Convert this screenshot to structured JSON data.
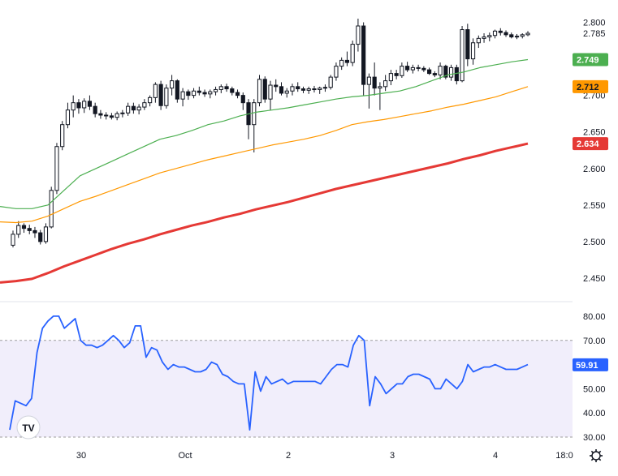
{
  "chart_data": [
    {
      "type": "candlestick",
      "ylim": [
        2.42,
        2.815
      ],
      "y_ticks": [
        "2.800",
        "2.785",
        "2.700",
        "2.650",
        "2.600",
        "2.550",
        "2.500",
        "2.450"
      ],
      "x_ticks": [
        "30",
        "Oct",
        "2",
        "3",
        "4",
        "18:0"
      ],
      "grid": false,
      "colors": {
        "up": "#131722",
        "down": "#131722",
        "ma_fast": "#4caf50",
        "ma_mid": "#ff9800",
        "ma_slow": "#e53935"
      },
      "candles": [
        [
          2.495,
          2.515,
          2.492,
          2.51
        ],
        [
          2.51,
          2.528,
          2.505,
          2.522
        ],
        [
          2.522,
          2.525,
          2.512,
          2.518
        ],
        [
          2.518,
          2.523,
          2.51,
          2.515
        ],
        [
          2.515,
          2.52,
          2.505,
          2.512
        ],
        [
          2.512,
          2.516,
          2.496,
          2.5
        ],
        [
          2.5,
          2.525,
          2.497,
          2.52
        ],
        [
          2.52,
          2.575,
          2.518,
          2.57
        ],
        [
          2.57,
          2.635,
          2.565,
          2.63
        ],
        [
          2.63,
          2.665,
          2.625,
          2.66
        ],
        [
          2.66,
          2.69,
          2.655,
          2.68
        ],
        [
          2.68,
          2.7,
          2.67,
          2.69
        ],
        [
          2.69,
          2.695,
          2.675,
          2.683
        ],
        [
          2.683,
          2.696,
          2.676,
          2.692
        ],
        [
          2.692,
          2.7,
          2.68,
          2.685
        ],
        [
          2.685,
          2.69,
          2.67,
          2.675
        ],
        [
          2.675,
          2.68,
          2.668,
          2.673
        ],
        [
          2.673,
          2.677,
          2.667,
          2.672
        ],
        [
          2.672,
          2.676,
          2.667,
          2.67
        ],
        [
          2.67,
          2.678,
          2.666,
          2.675
        ],
        [
          2.675,
          2.68,
          2.67,
          2.676
        ],
        [
          2.676,
          2.69,
          2.672,
          2.685
        ],
        [
          2.685,
          2.69,
          2.675,
          2.68
        ],
        [
          2.68,
          2.688,
          2.674,
          2.684
        ],
        [
          2.684,
          2.695,
          2.68,
          2.69
        ],
        [
          2.69,
          2.7,
          2.685,
          2.697
        ],
        [
          2.697,
          2.718,
          2.69,
          2.715
        ],
        [
          2.715,
          2.72,
          2.68,
          2.686
        ],
        [
          2.686,
          2.715,
          2.682,
          2.71
        ],
        [
          2.71,
          2.728,
          2.7,
          2.72
        ],
        [
          2.72,
          2.722,
          2.69,
          2.695
        ],
        [
          2.695,
          2.71,
          2.685,
          2.705
        ],
        [
          2.705,
          2.708,
          2.694,
          2.7
        ],
        [
          2.7,
          2.71,
          2.696,
          2.706
        ],
        [
          2.706,
          2.712,
          2.7,
          2.704
        ],
        [
          2.704,
          2.708,
          2.698,
          2.702
        ],
        [
          2.702,
          2.708,
          2.696,
          2.705
        ],
        [
          2.705,
          2.712,
          2.7,
          2.708
        ],
        [
          2.708,
          2.715,
          2.703,
          2.712
        ],
        [
          2.712,
          2.716,
          2.705,
          2.709
        ],
        [
          2.709,
          2.712,
          2.7,
          2.704
        ],
        [
          2.704,
          2.708,
          2.696,
          2.7
        ],
        [
          2.7,
          2.704,
          2.68,
          2.69
        ],
        [
          2.69,
          2.695,
          2.64,
          2.66
        ],
        [
          2.66,
          2.695,
          2.622,
          2.69
        ],
        [
          2.69,
          2.728,
          2.685,
          2.722
        ],
        [
          2.722,
          2.726,
          2.69,
          2.695
        ],
        [
          2.695,
          2.72,
          2.68,
          2.714
        ],
        [
          2.714,
          2.722,
          2.705,
          2.712
        ],
        [
          2.712,
          2.718,
          2.7,
          2.703
        ],
        [
          2.703,
          2.71,
          2.697,
          2.706
        ],
        [
          2.706,
          2.716,
          2.7,
          2.712
        ],
        [
          2.712,
          2.718,
          2.705,
          2.709
        ],
        [
          2.709,
          2.712,
          2.703,
          2.707
        ],
        [
          2.707,
          2.712,
          2.702,
          2.709
        ],
        [
          2.709,
          2.713,
          2.704,
          2.708
        ],
        [
          2.708,
          2.712,
          2.702,
          2.71
        ],
        [
          2.71,
          2.715,
          2.705,
          2.711
        ],
        [
          2.711,
          2.728,
          2.708,
          2.725
        ],
        [
          2.725,
          2.745,
          2.72,
          2.74
        ],
        [
          2.74,
          2.752,
          2.735,
          2.748
        ],
        [
          2.748,
          2.76,
          2.74,
          2.745
        ],
        [
          2.745,
          2.775,
          2.74,
          2.77
        ],
        [
          2.77,
          2.805,
          2.76,
          2.795
        ],
        [
          2.795,
          2.8,
          2.7,
          2.715
        ],
        [
          2.715,
          2.73,
          2.682,
          2.725
        ],
        [
          2.725,
          2.745,
          2.7,
          2.71
        ],
        [
          2.71,
          2.718,
          2.68,
          2.712
        ],
        [
          2.712,
          2.728,
          2.706,
          2.72
        ],
        [
          2.72,
          2.735,
          2.714,
          2.73
        ],
        [
          2.73,
          2.735,
          2.722,
          2.727
        ],
        [
          2.727,
          2.745,
          2.724,
          2.74
        ],
        [
          2.74,
          2.746,
          2.732,
          2.735
        ],
        [
          2.735,
          2.742,
          2.73,
          2.738
        ],
        [
          2.738,
          2.742,
          2.733,
          2.737
        ],
        [
          2.737,
          2.74,
          2.732,
          2.735
        ],
        [
          2.735,
          2.738,
          2.728,
          2.73
        ],
        [
          2.73,
          2.733,
          2.725,
          2.728
        ],
        [
          2.728,
          2.745,
          2.722,
          2.74
        ],
        [
          2.74,
          2.742,
          2.722,
          2.725
        ],
        [
          2.725,
          2.742,
          2.72,
          2.738
        ],
        [
          2.738,
          2.742,
          2.715,
          2.72
        ],
        [
          2.72,
          2.795,
          2.718,
          2.79
        ],
        [
          2.79,
          2.798,
          2.74,
          2.75
        ],
        [
          2.75,
          2.778,
          2.742,
          2.772
        ],
        [
          2.772,
          2.782,
          2.765,
          2.778
        ],
        [
          2.778,
          2.785,
          2.772,
          2.78
        ],
        [
          2.78,
          2.786,
          2.774,
          2.782
        ],
        [
          2.782,
          2.79,
          2.778,
          2.788
        ],
        [
          2.788,
          2.792,
          2.782,
          2.786
        ],
        [
          2.786,
          2.789,
          2.78,
          2.783
        ],
        [
          2.783,
          2.786,
          2.778,
          2.78
        ],
        [
          2.78,
          2.784,
          2.777,
          2.781
        ],
        [
          2.781,
          2.785,
          2.778,
          2.783
        ],
        [
          2.783,
          2.788,
          2.781,
          2.785
        ]
      ],
      "moving_averages": [
        {
          "name": "",
          "color": "#4caf50",
          "last": "2.749",
          "values": [
            2.548,
            2.545,
            2.545,
            2.55,
            2.57,
            2.59,
            2.6,
            2.61,
            2.62,
            2.63,
            2.64,
            2.645,
            2.652,
            2.66,
            2.665,
            2.672,
            2.677,
            2.68,
            2.683,
            2.687,
            2.691,
            2.695,
            2.698,
            2.7,
            2.703,
            2.706,
            2.712,
            2.72,
            2.728,
            2.732,
            2.738,
            2.742,
            2.746,
            2.749
          ]
        },
        {
          "name": "",
          "color": "#ff9800",
          "last": "2.712",
          "values": [
            2.527,
            2.526,
            2.528,
            2.535,
            2.545,
            2.555,
            2.562,
            2.57,
            2.578,
            2.586,
            2.594,
            2.6,
            2.606,
            2.612,
            2.617,
            2.622,
            2.627,
            2.632,
            2.636,
            2.64,
            2.645,
            2.652,
            2.66,
            2.664,
            2.667,
            2.671,
            2.675,
            2.679,
            2.684,
            2.688,
            2.693,
            2.698,
            2.705,
            2.712
          ]
        },
        {
          "name": "",
          "color": "#e53935",
          "last": "2.634",
          "values": [
            2.444,
            2.446,
            2.449,
            2.457,
            2.466,
            2.474,
            2.482,
            2.49,
            2.497,
            2.503,
            2.51,
            2.516,
            2.522,
            2.527,
            2.533,
            2.538,
            2.544,
            2.549,
            2.554,
            2.56,
            2.566,
            2.572,
            2.577,
            2.582,
            2.587,
            2.592,
            2.597,
            2.602,
            2.607,
            2.613,
            2.618,
            2.624,
            2.629,
            2.634
          ]
        }
      ]
    },
    {
      "type": "line",
      "ylim": [
        28,
        84
      ],
      "y_ticks": [
        "80.00",
        "70.00",
        "50.00",
        "40.00",
        "30.00"
      ],
      "band": [
        30,
        70
      ],
      "last": "59.91",
      "color": "#2962ff",
      "values": [
        33,
        45,
        44,
        43,
        46,
        65,
        75,
        78,
        80,
        80,
        75,
        77,
        79,
        70,
        68,
        68,
        67,
        68,
        70,
        72,
        70,
        67,
        69,
        76,
        76,
        63,
        67,
        66,
        61,
        58,
        60,
        59,
        59,
        58,
        57,
        57,
        58,
        61,
        60,
        56,
        55,
        53,
        52,
        52,
        33,
        57,
        49,
        55,
        52,
        53,
        54,
        52,
        53,
        53,
        53,
        53,
        53,
        52,
        55,
        58,
        60,
        60,
        59,
        68,
        72,
        70,
        43,
        55,
        52,
        48,
        50,
        52,
        52,
        55,
        56,
        56,
        55,
        54,
        50,
        50,
        54,
        52,
        50,
        53,
        60,
        57,
        58,
        59,
        59,
        60,
        59,
        58,
        58,
        58,
        59,
        60
      ]
    }
  ],
  "logo": "TV",
  "settings_icon": "gear-icon"
}
